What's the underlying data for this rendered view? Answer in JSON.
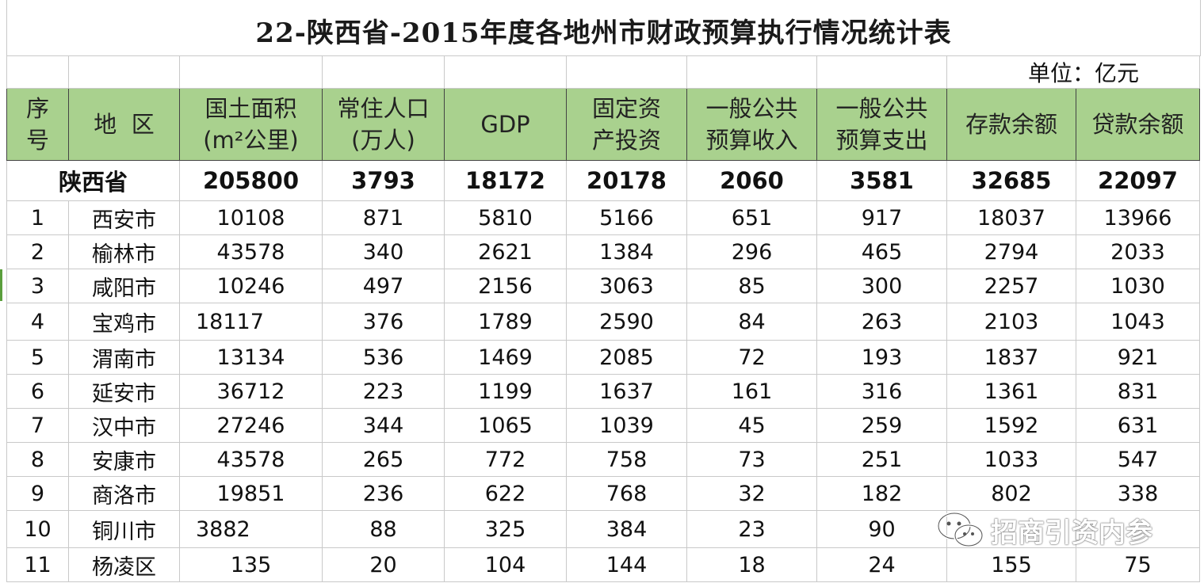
{
  "title": "22-陕西省-2015年度各地州市财政预算执行情况统计表",
  "unit": "单位：亿元",
  "headers": {
    "index": [
      "序",
      "号"
    ],
    "region": [
      "地  区"
    ],
    "area": [
      "国土面积",
      "(m²公里)"
    ],
    "population": [
      "常住人口",
      "(万人)"
    ],
    "gdp": [
      "GDP"
    ],
    "investment": [
      "固定资",
      "产投资"
    ],
    "revenue": [
      "一般公共",
      "预算收入"
    ],
    "expenditure": [
      "一般公共",
      "预算支出"
    ],
    "deposits": [
      "存款余额"
    ],
    "loans": [
      "贷款余额"
    ]
  },
  "province": {
    "name": "陕西省",
    "area": "205800",
    "population": "3793",
    "gdp": "18172",
    "investment": "20178",
    "revenue": "2060",
    "expenditure": "3581",
    "deposits": "32685",
    "loans": "22097"
  },
  "rows": [
    {
      "idx": "1",
      "name": "西安市",
      "area": "10108",
      "population": "871",
      "gdp": "5810",
      "investment": "5166",
      "revenue": "651",
      "expenditure": "917",
      "deposits": "18037",
      "loans": "13966"
    },
    {
      "idx": "2",
      "name": "榆林市",
      "area": "43578",
      "population": "340",
      "gdp": "2621",
      "investment": "1384",
      "revenue": "296",
      "expenditure": "465",
      "deposits": "2794",
      "loans": "2033"
    },
    {
      "idx": "3",
      "name": "咸阳市",
      "area": "10246",
      "population": "497",
      "gdp": "2156",
      "investment": "3063",
      "revenue": "85",
      "expenditure": "300",
      "deposits": "2257",
      "loans": "1030"
    },
    {
      "idx": "4",
      "name": "宝鸡市",
      "area": "18117",
      "population": "376",
      "gdp": "1789",
      "investment": "2590",
      "revenue": "84",
      "expenditure": "263",
      "deposits": "2103",
      "loans": "1043"
    },
    {
      "idx": "5",
      "name": "渭南市",
      "area": "13134",
      "population": "536",
      "gdp": "1469",
      "investment": "2085",
      "revenue": "72",
      "expenditure": "193",
      "deposits": "1837",
      "loans": "921"
    },
    {
      "idx": "6",
      "name": "延安市",
      "area": "36712",
      "population": "223",
      "gdp": "1199",
      "investment": "1637",
      "revenue": "161",
      "expenditure": "316",
      "deposits": "1361",
      "loans": "831"
    },
    {
      "idx": "7",
      "name": "汉中市",
      "area": "27246",
      "population": "344",
      "gdp": "1065",
      "investment": "1039",
      "revenue": "45",
      "expenditure": "259",
      "deposits": "1592",
      "loans": "631"
    },
    {
      "idx": "8",
      "name": "安康市",
      "area": "43578",
      "population": "265",
      "gdp": "772",
      "investment": "758",
      "revenue": "73",
      "expenditure": "251",
      "deposits": "1033",
      "loans": "547"
    },
    {
      "idx": "9",
      "name": "商洛市",
      "area": "19851",
      "population": "236",
      "gdp": "622",
      "investment": "768",
      "revenue": "32",
      "expenditure": "182",
      "deposits": "802",
      "loans": "338"
    },
    {
      "idx": "10",
      "name": "铜川市",
      "area": "3882",
      "population": "88",
      "gdp": "325",
      "investment": "384",
      "revenue": "23",
      "expenditure": "90",
      "deposits": "",
      "loans": ""
    },
    {
      "idx": "11",
      "name": "杨凌区",
      "area": "135",
      "population": "20",
      "gdp": "104",
      "investment": "144",
      "revenue": "18",
      "expenditure": "24",
      "deposits": "155",
      "loans": "75"
    }
  ],
  "watermark": {
    "text": "招商引资内参",
    "icon": "wechat-icon"
  }
}
